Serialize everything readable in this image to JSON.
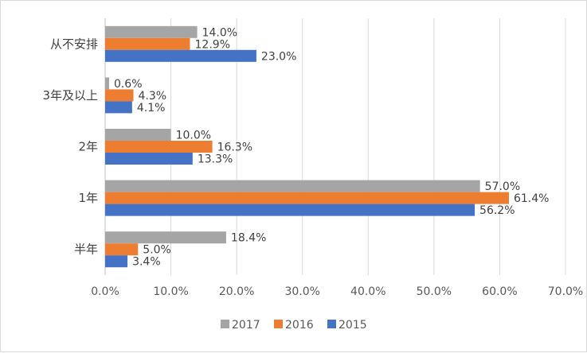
{
  "chart_data": {
    "type": "bar",
    "orientation": "horizontal",
    "categories": [
      "从不安排",
      "3年及以上",
      "2年",
      "1年",
      "半年"
    ],
    "series": [
      {
        "name": "2017",
        "color": "#a5a5a5",
        "values": [
          14.0,
          0.6,
          10.0,
          57.0,
          18.4
        ],
        "labels": [
          "14.0%",
          "0.6%",
          "10.0%",
          "57.0%",
          "18.4%"
        ]
      },
      {
        "name": "2016",
        "color": "#ed7d31",
        "values": [
          12.9,
          4.3,
          16.3,
          61.4,
          5.0
        ],
        "labels": [
          "12.9%",
          "4.3%",
          "16.3%",
          "61.4%",
          "5.0%"
        ]
      },
      {
        "name": "2015",
        "color": "#4472c4",
        "values": [
          23.0,
          4.1,
          13.3,
          56.2,
          3.4
        ],
        "labels": [
          "23.0%",
          "4.1%",
          "13.3%",
          "56.2%",
          "3.4%"
        ]
      }
    ],
    "xlim": [
      0,
      70
    ],
    "x_ticks": [
      "0.0%",
      "10.0%",
      "20.0%",
      "30.0%",
      "40.0%",
      "50.0%",
      "60.0%",
      "70.0%"
    ],
    "grid": "vertical",
    "legend_position": "bottom",
    "legend": [
      "2017",
      "2016",
      "2015"
    ],
    "title": "",
    "xlabel": "",
    "ylabel": ""
  }
}
